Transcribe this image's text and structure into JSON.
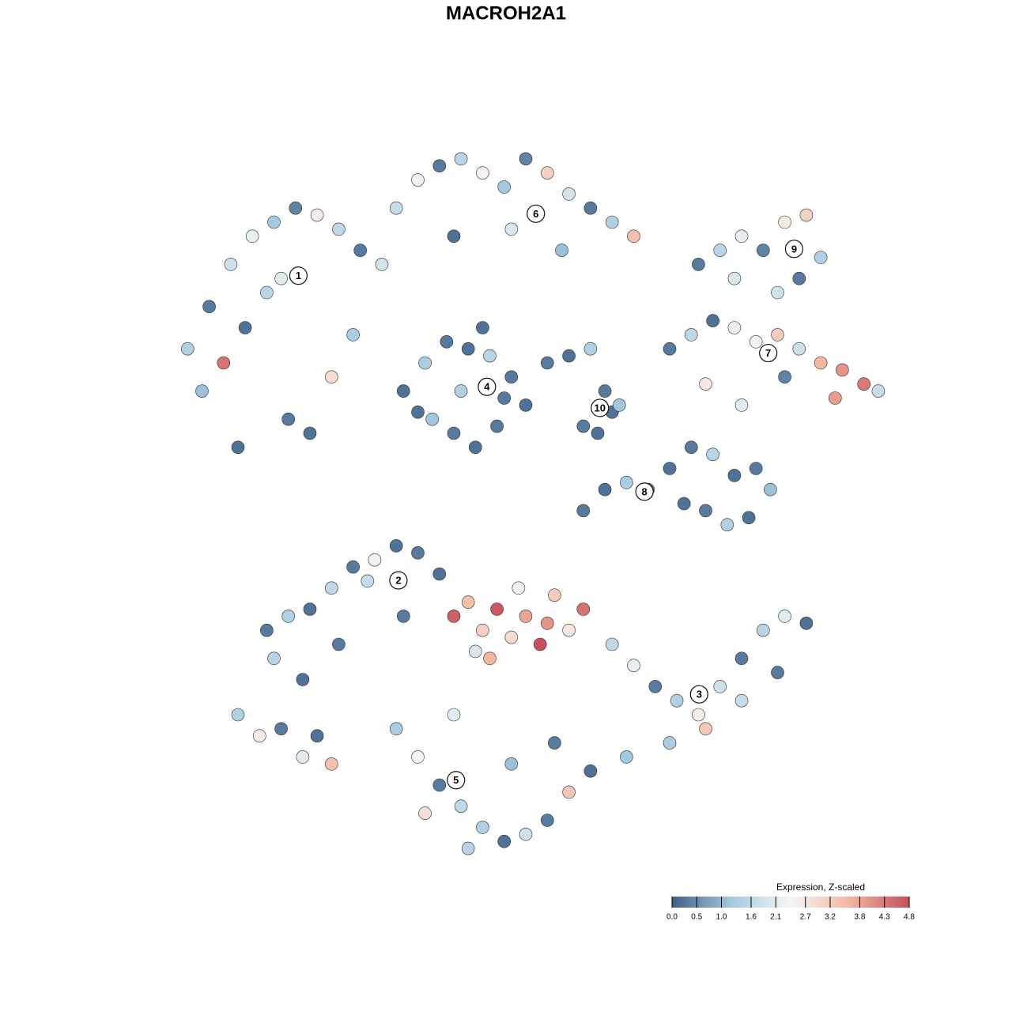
{
  "chart_data": {
    "type": "scatter",
    "title": "MACROH2A1",
    "xlim": [
      0,
      100
    ],
    "ylim": [
      0,
      100
    ],
    "x": [
      3,
      6,
      9,
      12,
      15,
      18,
      21,
      24,
      27,
      30,
      5,
      8,
      11,
      14,
      17,
      20,
      23,
      26,
      10,
      16,
      32,
      35,
      38,
      41,
      44,
      47,
      50,
      53,
      56,
      59,
      62,
      65,
      40,
      48,
      55,
      74,
      77,
      80,
      83,
      86,
      89,
      91,
      85,
      88,
      79,
      70,
      73,
      76,
      79,
      82,
      85,
      88,
      91,
      94,
      97,
      99,
      75,
      80,
      86,
      93,
      33,
      36,
      39,
      42,
      45,
      48,
      50,
      37,
      40,
      43,
      46,
      35,
      41,
      47,
      44,
      53,
      56,
      59,
      61,
      62,
      58,
      60,
      63,
      58,
      61,
      64,
      67,
      70,
      73,
      76,
      79,
      82,
      84,
      72,
      75,
      78,
      81,
      14,
      17,
      20,
      23,
      26,
      29,
      32,
      35,
      15,
      19,
      24,
      28,
      33,
      38,
      40,
      42,
      44,
      46,
      48,
      50,
      52,
      54,
      56,
      58,
      45,
      49,
      53,
      43,
      62,
      65,
      68,
      71,
      74,
      77,
      80,
      83,
      86,
      89,
      70,
      75,
      80,
      64,
      85,
      32,
      35,
      38,
      41,
      44,
      47,
      50,
      53,
      56,
      59,
      36,
      42,
      48,
      54,
      40,
      10,
      13,
      16,
      19,
      23,
      21
    ],
    "y": [
      72,
      78,
      84,
      88,
      90,
      92,
      91,
      89,
      86,
      84,
      66,
      70,
      75,
      80,
      62,
      60,
      68,
      74,
      58,
      82,
      92,
      96,
      98,
      99,
      97,
      95,
      99,
      97,
      94,
      92,
      90,
      88,
      88,
      89,
      86,
      84,
      86,
      88,
      86,
      90,
      91,
      85,
      80,
      82,
      82,
      72,
      74,
      76,
      75,
      73,
      74,
      72,
      70,
      69,
      67,
      66,
      67,
      64,
      68,
      65,
      66,
      70,
      73,
      72,
      71,
      68,
      64,
      62,
      60,
      58,
      61,
      63,
      66,
      65,
      75,
      70,
      71,
      72,
      66,
      63,
      61,
      60,
      64,
      49,
      52,
      53,
      52,
      55,
      58,
      57,
      54,
      55,
      52,
      50,
      49,
      47,
      48,
      32,
      34,
      35,
      38,
      41,
      42,
      44,
      43,
      28,
      25,
      30,
      39,
      34,
      40,
      34,
      36,
      32,
      35,
      31,
      34,
      30,
      37,
      32,
      35,
      28,
      38,
      33,
      29,
      30,
      27,
      24,
      22,
      20,
      24,
      28,
      32,
      34,
      33,
      16,
      18,
      22,
      14,
      26,
      18,
      14,
      10,
      7,
      4,
      2,
      3,
      5,
      9,
      12,
      6,
      1,
      13,
      16,
      20,
      20,
      17,
      18,
      14,
      13,
      17
    ],
    "values": [
      1.4,
      0.3,
      1.8,
      2.2,
      1.2,
      0.4,
      2.6,
      1.6,
      0.3,
      1.9,
      1.1,
      4.4,
      0.2,
      1.5,
      0.3,
      0.2,
      2.9,
      1.3,
      0.2,
      2.1,
      1.7,
      2.3,
      0.3,
      1.5,
      2.5,
      1.2,
      0.4,
      3.1,
      1.9,
      0.3,
      1.4,
      3.4,
      0.2,
      2.0,
      1.1,
      0.3,
      1.5,
      2.2,
      0.4,
      2.6,
      3.1,
      1.4,
      1.8,
      0.3,
      2.0,
      0.3,
      1.6,
      0.2,
      2.2,
      2.5,
      3.2,
      1.8,
      3.6,
      4.0,
      4.3,
      1.7,
      2.7,
      2.1,
      0.4,
      3.9,
      0.2,
      1.3,
      0.3,
      0.2,
      1.5,
      0.3,
      0.2,
      1.2,
      0.3,
      0.2,
      0.3,
      0.2,
      1.4,
      0.3,
      0.2,
      0.3,
      0.2,
      1.4,
      0.3,
      0.2,
      0.3,
      0.2,
      1.2,
      0.3,
      0.2,
      1.3,
      0.3,
      0.2,
      0.3,
      1.5,
      0.2,
      0.3,
      1.1,
      0.2,
      0.3,
      1.4,
      0.2,
      0.3,
      1.4,
      0.2,
      1.6,
      0.3,
      2.3,
      0.2,
      0.3,
      1.5,
      0.2,
      0.3,
      1.7,
      0.3,
      0.2,
      4.6,
      3.4,
      3.1,
      4.7,
      2.9,
      3.8,
      4.8,
      3.2,
      2.7,
      4.4,
      3.6,
      2.5,
      4.0,
      2.0,
      1.6,
      2.2,
      0.3,
      1.4,
      2.6,
      1.8,
      0.3,
      1.5,
      2.1,
      0.2,
      1.3,
      3.3,
      1.7,
      1.2,
      0.3,
      1.3,
      2.4,
      0.3,
      1.6,
      1.4,
      0.2,
      1.8,
      0.3,
      3.3,
      0.2,
      2.8,
      1.5,
      1.1,
      0.3,
      2.1,
      1.4,
      2.6,
      0.3,
      2.1,
      3.4,
      0.2
    ],
    "cluster_labels": [
      "1",
      "6",
      "9",
      "7",
      "4",
      "10",
      "8",
      "2",
      "3",
      "5"
    ],
    "cluster_x": [
      18.4,
      51.4,
      87.3,
      83.7,
      44.6,
      60.3,
      66.5,
      32.3,
      74.1,
      40.3
    ],
    "cluster_y": [
      82.4,
      91.2,
      86.2,
      71.4,
      66.6,
      63.6,
      51.7,
      39.1,
      22.9,
      10.7
    ],
    "colorbar_title": "Expression, Z-scaled",
    "colors": [
      "#3f6088",
      "#a3c9df",
      "#f6f6f6",
      "#f3b69f",
      "#c6505b"
    ],
    "cticks": [
      {
        "value": 0,
        "label": "0.0"
      },
      {
        "value": 0.5,
        "label": "0.5"
      },
      {
        "value": 1,
        "label": "1.0"
      },
      {
        "value": 1.6,
        "label": "1.6"
      },
      {
        "value": 2.1,
        "label": "2.1"
      },
      {
        "value": 2.7,
        "label": "2.7"
      },
      {
        "value": 3.2,
        "label": "3.2"
      },
      {
        "value": 3.8,
        "label": "3.8"
      },
      {
        "value": 4.3,
        "label": "4.3"
      },
      {
        "value": 4.8,
        "label": "4.8"
      }
    ]
  }
}
